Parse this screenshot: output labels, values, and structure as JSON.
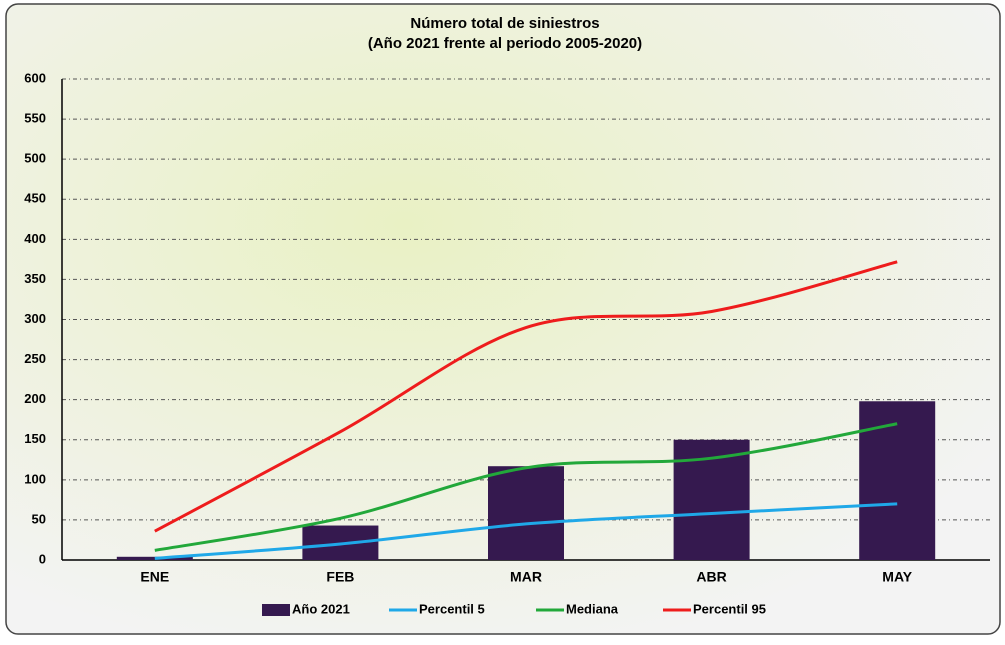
{
  "chart_data": {
    "type": "bar_line",
    "title": "Número total de siniestros",
    "subtitle": "(Año 2021 frente al periodo 2005-2020)",
    "categories": [
      "ENE",
      "FEB",
      "MAR",
      "ABR",
      "MAY"
    ],
    "series": [
      {
        "name": "Año 2021",
        "type": "bar",
        "color": "#35194f",
        "values": [
          4,
          43,
          117,
          150,
          198
        ]
      },
      {
        "name": "Percentil 5",
        "type": "line",
        "color": "#1fa8e8",
        "values": [
          2,
          20,
          45,
          58,
          70
        ]
      },
      {
        "name": "Mediana",
        "type": "line",
        "color": "#22a83a",
        "values": [
          12,
          52,
          115,
          127,
          170
        ]
      },
      {
        "name": "Percentil 95",
        "type": "line",
        "color": "#ee1c1c",
        "values": [
          36,
          160,
          290,
          310,
          372
        ]
      }
    ],
    "ylim": [
      0,
      600
    ],
    "yticks": [
      0,
      50,
      100,
      150,
      200,
      250,
      300,
      350,
      400,
      450,
      500,
      550,
      600
    ],
    "grid": true,
    "legend": "bottom"
  }
}
